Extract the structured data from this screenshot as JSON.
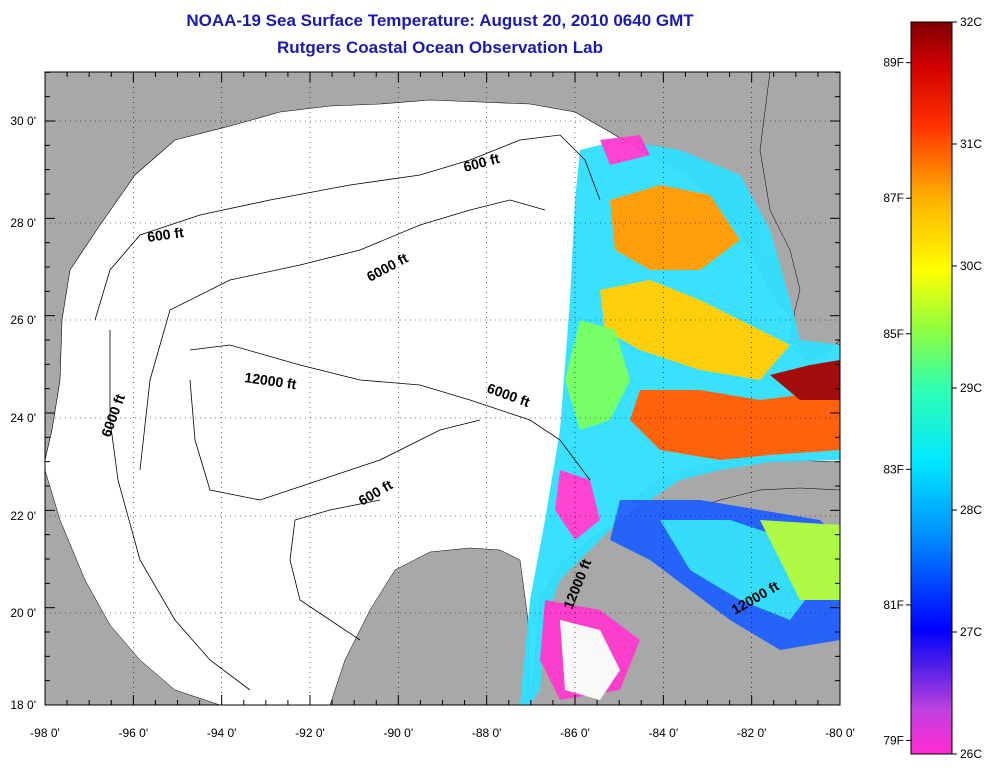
{
  "header": {
    "title_line1": "NOAA-19 Sea Surface Temperature:  August 20, 2010 0640 GMT",
    "title_line2": "Rutgers Coastal Ocean Observation Lab"
  },
  "map": {
    "lon_labels": [
      "-98 0'",
      "-96 0'",
      "-94 0'",
      "-92 0'",
      "-90 0'",
      "-88 0'",
      "-86 0'",
      "-84 0'",
      "-82 0'",
      "-80 0'"
    ],
    "lat_labels": [
      "30 0'",
      "28 0'",
      "26 0'",
      "24 0'",
      "22 0'",
      "20 0'",
      "18 0'"
    ],
    "contour_labels": [
      {
        "id": "c600a",
        "text": "600 ft"
      },
      {
        "id": "c600b",
        "text": "600 ft"
      },
      {
        "id": "c600c",
        "text": "600 ft"
      },
      {
        "id": "c6000a",
        "text": "6000 ft"
      },
      {
        "id": "c6000b",
        "text": "6000 ft"
      },
      {
        "id": "c6000c",
        "text": "6000 ft"
      },
      {
        "id": "c12000a",
        "text": "12000 ft"
      },
      {
        "id": "c12000b",
        "text": "12000 ft"
      },
      {
        "id": "c12000c",
        "text": "12000 ft"
      }
    ],
    "colors": {
      "land": "#a8a8a8",
      "ocean_no_data": "#ffffff",
      "title": "#1a1ab4"
    }
  },
  "colorbar": {
    "celsius_labels": [
      "32C",
      "31C",
      "30C",
      "29C",
      "28C",
      "27C",
      "26C"
    ],
    "fahrenheit_labels": [
      "89F",
      "87F",
      "85F",
      "83F",
      "81F",
      "79F"
    ],
    "range_c": [
      26,
      32
    ]
  }
}
